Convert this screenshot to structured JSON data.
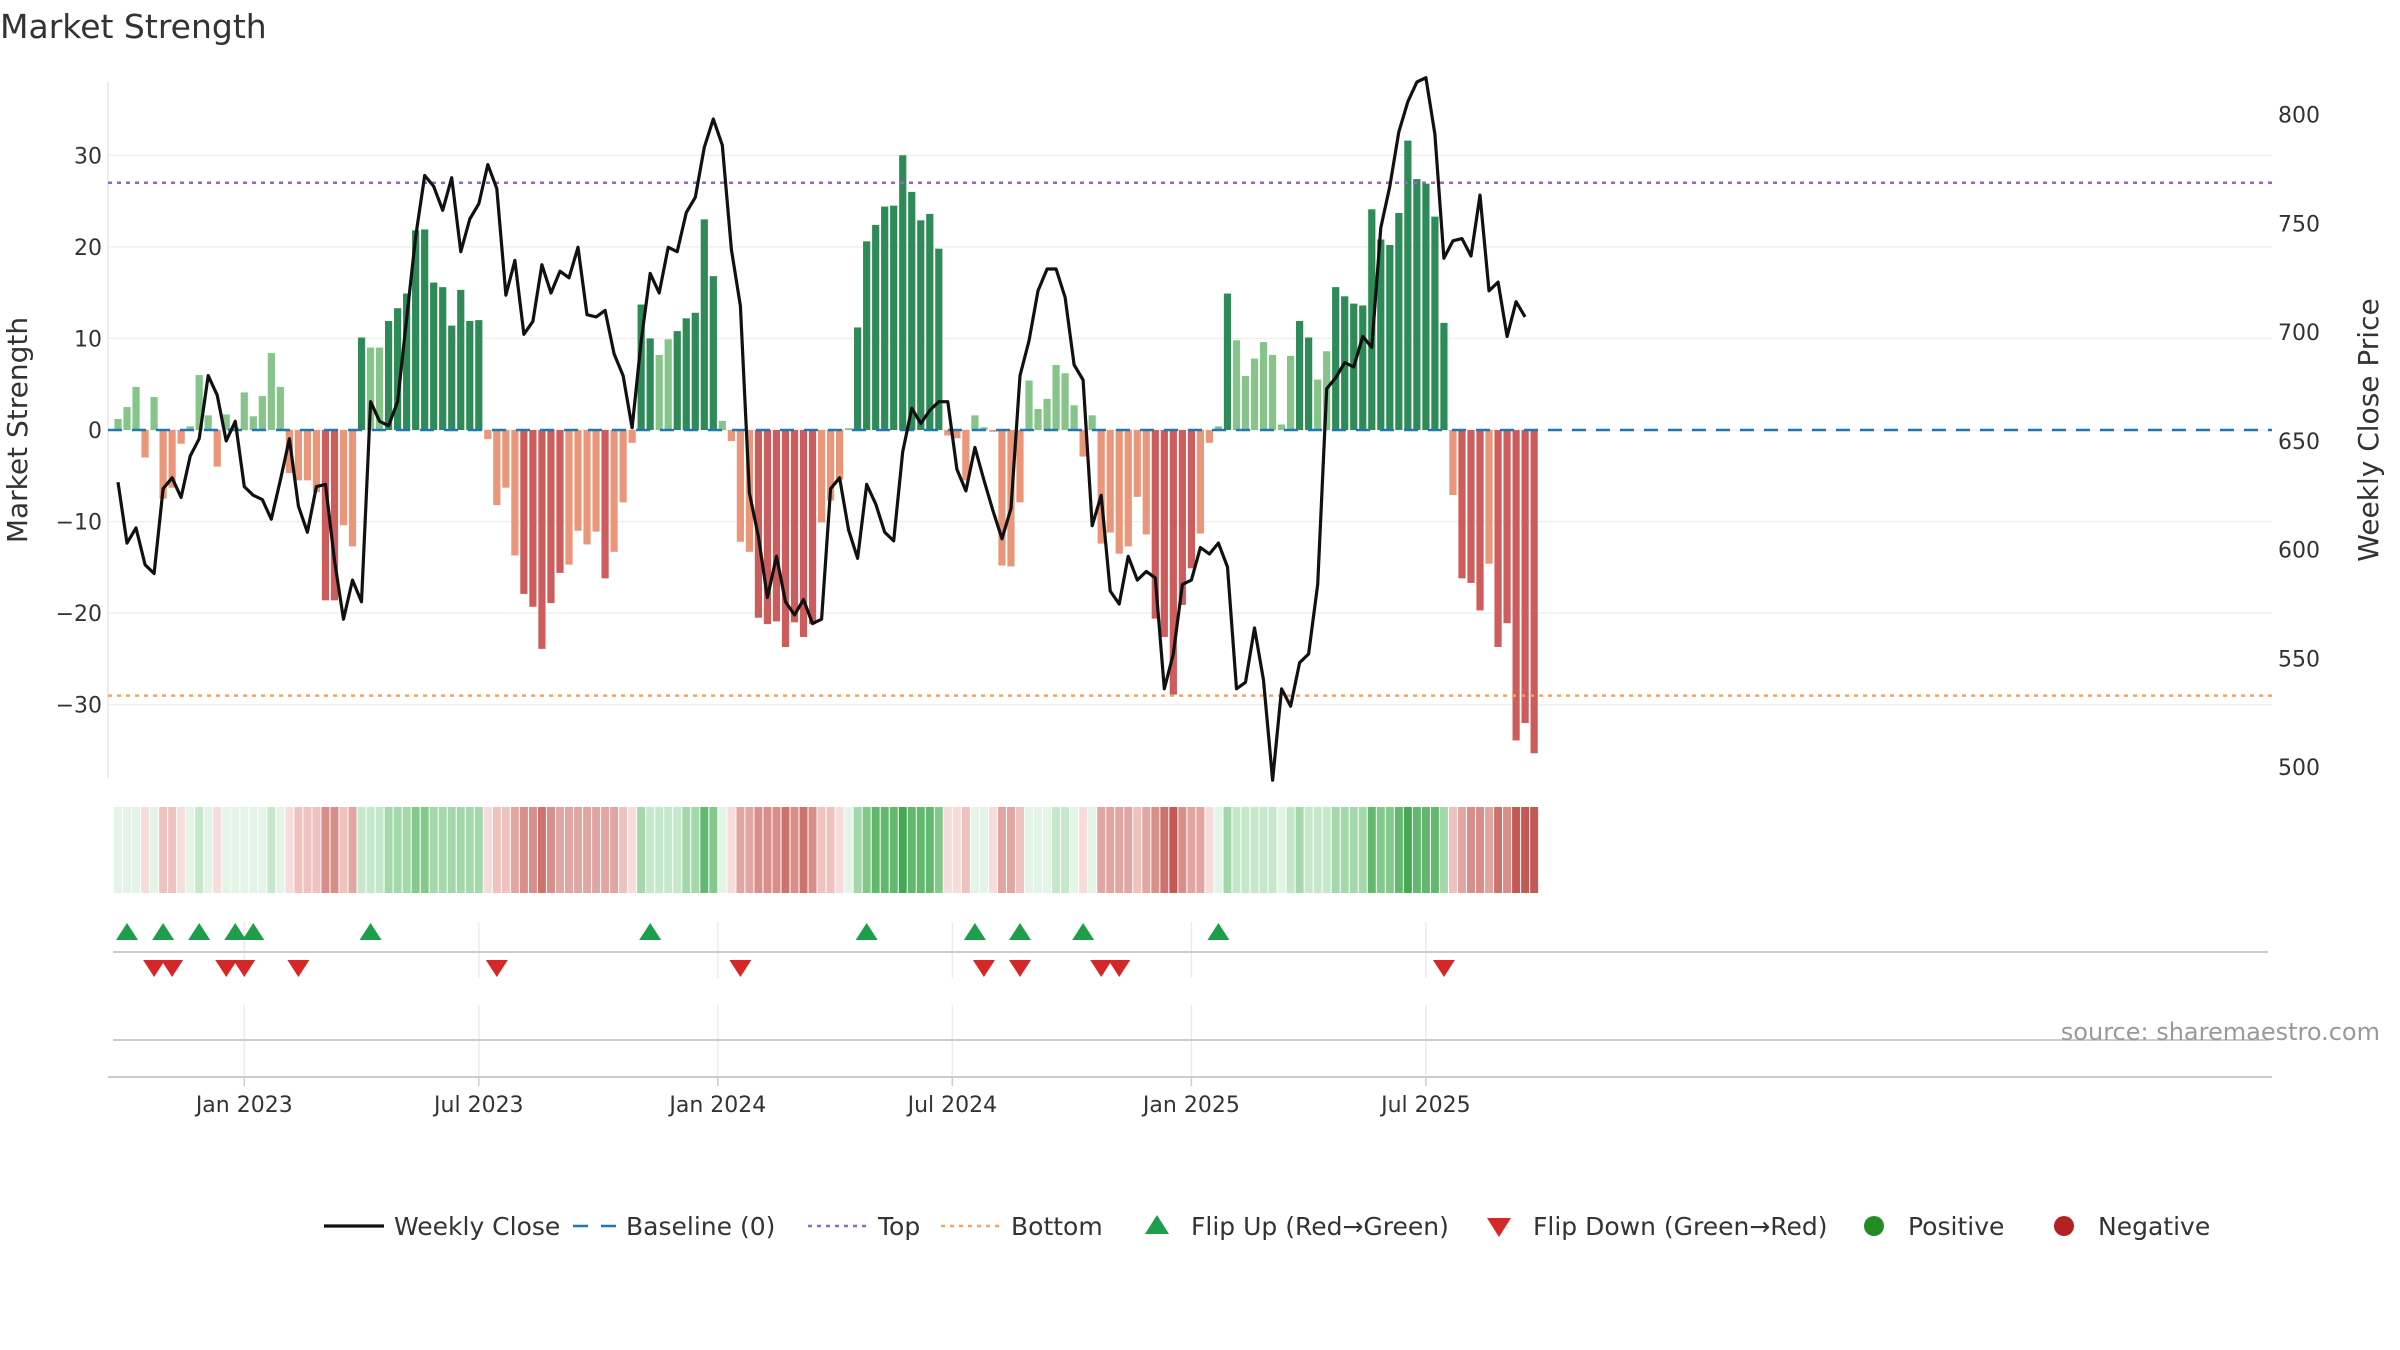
{
  "chart_data": {
    "type": "bar",
    "title": "Market Strength",
    "ylabel": "Market Strength",
    "y2label": "Weekly Close Price",
    "ylim": [
      -38,
      38
    ],
    "y2lim": [
      495,
      815
    ],
    "yticks": [
      -30,
      -20,
      -10,
      0,
      10,
      20,
      30
    ],
    "y2ticks": [
      500,
      550,
      600,
      650,
      700,
      750,
      800
    ],
    "top_level": 27,
    "bottom_level": -29,
    "xticks": [
      {
        "label": "Jan 2023",
        "week": 14
      },
      {
        "label": "Jul 2023",
        "week": 40
      },
      {
        "label": "Jan 2024",
        "week": 66.5
      },
      {
        "label": "Jul 2024",
        "week": 92.5
      },
      {
        "label": "Jan 2025",
        "week": 119
      },
      {
        "label": "Jul 2025",
        "week": 145
      }
    ],
    "strength": [
      1.2,
      2.5,
      4.7,
      -3,
      3.6,
      -7.5,
      -6.3,
      -1.5,
      0.4,
      6,
      1.6,
      -4,
      1.7,
      0.3,
      4.1,
      1.5,
      3.7,
      8.4,
      4.7,
      -4.7,
      -5.5,
      -5.5,
      -6.8,
      -18.6,
      -18.6,
      -10.4,
      -12.7,
      10.1,
      9,
      9,
      11.9,
      13.3,
      14.9,
      21.8,
      21.9,
      16.1,
      15.6,
      11.4,
      15.3,
      11.9,
      12,
      -1,
      -8.2,
      -6.3,
      -13.7,
      -17.9,
      -19.3,
      -23.9,
      -18.9,
      -15.6,
      -14.7,
      -11,
      -12.5,
      -11.1,
      -16.2,
      -13.3,
      -7.9,
      -1.4,
      13.7,
      10,
      8.2,
      9.9,
      10.8,
      12.2,
      12.8,
      23,
      16.8,
      1,
      -1.2,
      -12.2,
      -13.3,
      -20.5,
      -21.2,
      -20.9,
      -23.7,
      -21,
      -22.6,
      -21.2,
      -10.1,
      -7.7,
      -5.4,
      0.2,
      11.2,
      20.6,
      22.4,
      24.4,
      24.5,
      30,
      26,
      22.9,
      23.6,
      19.8,
      -0.6,
      -0.9,
      -5.5,
      1.6,
      0.3,
      -0.2,
      -14.8,
      -14.9,
      -7.9,
      5.4,
      2.3,
      3.4,
      7.1,
      6.2,
      2.7,
      -2.9,
      1.6,
      -12.4,
      -11.2,
      -13.5,
      -12.7,
      -7.3,
      -11.4,
      -20.6,
      -22.6,
      -28.9,
      -19.1,
      -15.1,
      -11.3,
      -1.4,
      0.4,
      14.9,
      9.8,
      5.9,
      7.8,
      9.6,
      8.2,
      0.6,
      8.1,
      11.9,
      10.1,
      5.5,
      8.6,
      15.6,
      14.6,
      13.8,
      13.6,
      24.1,
      20.8,
      20.2,
      23.7,
      31.6,
      27.4,
      26.9,
      23.3,
      11.7,
      -7.1,
      -16.2,
      -16.7,
      -19.7,
      -14.6,
      -23.7,
      -21.1,
      -33.9,
      -32,
      -35.3
    ],
    "weekly_close": [
      631,
      603,
      610,
      593,
      589,
      628,
      633,
      624,
      643,
      651,
      680,
      671,
      650,
      659,
      629,
      625,
      623,
      614,
      632,
      651,
      620,
      608,
      629,
      630,
      595,
      568,
      586,
      576,
      668,
      659,
      657,
      668,
      706,
      744,
      772,
      767,
      756,
      771,
      737,
      752,
      759,
      777,
      766,
      717,
      733,
      699,
      705,
      731,
      718,
      728,
      725,
      739,
      708,
      707,
      710,
      690,
      680,
      656,
      696,
      727,
      718,
      739,
      737,
      755,
      762,
      785,
      798,
      786,
      738,
      712,
      626,
      606,
      578,
      597,
      576,
      570,
      577,
      566,
      568,
      628,
      633,
      609,
      596,
      630,
      621,
      608,
      604,
      645,
      665,
      658,
      664,
      668,
      668,
      637,
      627,
      647,
      632,
      618,
      605,
      619,
      680,
      696,
      719,
      729,
      729,
      716,
      685,
      678,
      611,
      625,
      581,
      575,
      597,
      586,
      590,
      587,
      536,
      552,
      584,
      586,
      601,
      598,
      603,
      592,
      536,
      539,
      564,
      540,
      494,
      536,
      528,
      548,
      552,
      584,
      674,
      679,
      686,
      684,
      698,
      693,
      748,
      767,
      792,
      806,
      815,
      817,
      791,
      734,
      742,
      743,
      735,
      763,
      719,
      723,
      698,
      714,
      707
    ],
    "flip_up_weeks": [
      1,
      5,
      9,
      13,
      15,
      28,
      59,
      83,
      95,
      100,
      107,
      122
    ],
    "flip_down_weeks": [
      4,
      6,
      12,
      14,
      20,
      42,
      69,
      96,
      100,
      109,
      111,
      147
    ],
    "legend": [
      {
        "label": "Weekly Close",
        "kind": "line-solid"
      },
      {
        "label": "Baseline (0)",
        "kind": "line-dash"
      },
      {
        "label": "Top",
        "kind": "line-dot-purple"
      },
      {
        "label": "Bottom",
        "kind": "line-dot-orange"
      },
      {
        "label": "Flip Up (Red→Green)",
        "kind": "tri-up"
      },
      {
        "label": "Flip Down (Green→Red)",
        "kind": "tri-down"
      },
      {
        "label": "Positive",
        "kind": "dot-green"
      },
      {
        "label": "Negative",
        "kind": "dot-red"
      }
    ],
    "source": "source: sharemaestro.com"
  },
  "colors": {
    "pos_strong": "#2e8b57",
    "pos_light": "#86c48a",
    "neg_strong": "#cd5c5c",
    "neg_light": "#e9967a",
    "close_line": "#111111",
    "baseline": "#1f77b4",
    "top": "#9467bd",
    "bottom": "#f4a460",
    "flip_up": "#1e9e4a",
    "flip_down": "#d62728",
    "positive_dot": "#228b22",
    "negative_dot": "#b22222"
  }
}
